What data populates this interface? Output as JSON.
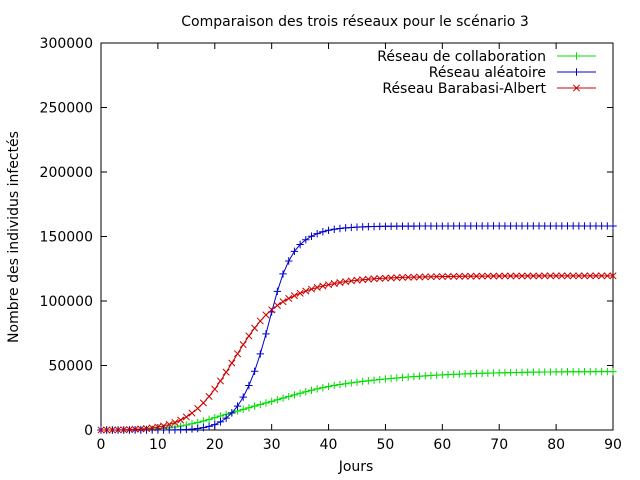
{
  "chart_data": {
    "type": "line",
    "title": "Comparaison des trois réseaux pour le scénario 3",
    "xlabel": "Jours",
    "ylabel": "Nombre des individus infectés",
    "xlim": [
      0,
      90
    ],
    "ylim": [
      0,
      300000
    ],
    "xticks": [
      "0",
      "10",
      "20",
      "30",
      "40",
      "50",
      "60",
      "70",
      "80",
      "90"
    ],
    "yticks": [
      "0",
      "50000",
      "100000",
      "150000",
      "200000",
      "250000",
      "300000"
    ],
    "grid": false,
    "legend_position": "top-right",
    "series": [
      {
        "name": "Réseau de collaboration",
        "color": "#00dd00",
        "marker": "plus",
        "x": [
          0,
          1,
          2,
          3,
          4,
          5,
          6,
          7,
          8,
          9,
          10,
          11,
          12,
          13,
          14,
          15,
          16,
          17,
          18,
          19,
          20,
          21,
          22,
          23,
          24,
          25,
          26,
          27,
          28,
          29,
          30,
          31,
          32,
          33,
          34,
          35,
          36,
          37,
          38,
          39,
          40,
          41,
          42,
          43,
          44,
          45,
          46,
          47,
          48,
          49,
          50,
          51,
          52,
          53,
          54,
          55,
          56,
          57,
          58,
          59,
          60,
          61,
          62,
          63,
          64,
          65,
          66,
          67,
          68,
          69,
          70,
          71,
          72,
          73,
          74,
          75,
          76,
          77,
          78,
          79,
          80,
          81,
          82,
          83,
          84,
          85,
          86,
          87,
          88,
          89,
          90
        ],
        "values": [
          0,
          0,
          0,
          0,
          50,
          150,
          250,
          350,
          500,
          700,
          950,
          1300,
          1750,
          2350,
          3050,
          3850,
          4800,
          5850,
          7000,
          8250,
          9550,
          10850,
          12150,
          13450,
          14750,
          16000,
          17250,
          18500,
          19750,
          20950,
          22200,
          23450,
          24700,
          25950,
          27200,
          28450,
          29650,
          30800,
          31850,
          32850,
          33750,
          34550,
          35250,
          35900,
          36500,
          37100,
          37650,
          38150,
          38650,
          39100,
          39550,
          39950,
          40350,
          40700,
          41050,
          41400,
          41700,
          42000,
          42250,
          42500,
          42700,
          42950,
          43150,
          43350,
          43500,
          43650,
          43800,
          43950,
          44100,
          44200,
          44300,
          44400,
          44500,
          44600,
          44700,
          44800,
          44850,
          44900,
          44950,
          45000,
          45050,
          45100,
          45150,
          45150,
          45200,
          45200,
          45200,
          45250,
          45250,
          45250,
          45250
        ]
      },
      {
        "name": "Réseau aléatoire",
        "color": "#0000cc",
        "marker": "plus",
        "x": [
          0,
          1,
          2,
          3,
          4,
          5,
          6,
          7,
          8,
          9,
          10,
          11,
          12,
          13,
          14,
          15,
          16,
          17,
          18,
          19,
          20,
          21,
          22,
          23,
          24,
          25,
          26,
          27,
          28,
          29,
          30,
          31,
          32,
          33,
          34,
          35,
          36,
          37,
          38,
          39,
          40,
          41,
          42,
          43,
          44,
          45,
          46,
          47,
          48,
          49,
          50,
          51,
          52,
          53,
          54,
          55,
          56,
          57,
          58,
          59,
          60,
          61,
          62,
          63,
          64,
          65,
          66,
          67,
          68,
          69,
          70,
          71,
          72,
          73,
          74,
          75,
          76,
          77,
          78,
          79,
          80,
          81,
          82,
          83,
          84,
          85,
          86,
          87,
          88,
          89,
          90
        ],
        "values": [
          0,
          0,
          0,
          0,
          0,
          0,
          0,
          0,
          0,
          0,
          0,
          0,
          50,
          100,
          200,
          400,
          700,
          1150,
          1800,
          2800,
          4200,
          6300,
          9200,
          13200,
          18500,
          25500,
          34500,
          45500,
          59000,
          74500,
          91500,
          107500,
          121000,
          131000,
          138500,
          143800,
          147500,
          150200,
          152200,
          153700,
          154800,
          155600,
          156200,
          156700,
          157000,
          157300,
          157500,
          157650,
          157750,
          157850,
          157900,
          157950,
          158000,
          158000,
          158050,
          158050,
          158100,
          158100,
          158100,
          158100,
          158100,
          158100,
          158150,
          158150,
          158150,
          158150,
          158150,
          158150,
          158150,
          158150,
          158150,
          158150,
          158150,
          158150,
          158150,
          158150,
          158150,
          158150,
          158150,
          158150,
          158150,
          158150,
          158150,
          158150,
          158150,
          158150,
          158150,
          158150,
          158150,
          158150,
          158150
        ]
      },
      {
        "name": "Réseau Barabasi-Albert",
        "color": "#cc0000",
        "marker": "x",
        "x": [
          0,
          1,
          2,
          3,
          4,
          5,
          6,
          7,
          8,
          9,
          10,
          11,
          12,
          13,
          14,
          15,
          16,
          17,
          18,
          19,
          20,
          21,
          22,
          23,
          24,
          25,
          26,
          27,
          28,
          29,
          30,
          31,
          32,
          33,
          34,
          35,
          36,
          37,
          38,
          39,
          40,
          41,
          42,
          43,
          44,
          45,
          46,
          47,
          48,
          49,
          50,
          51,
          52,
          53,
          54,
          55,
          56,
          57,
          58,
          59,
          60,
          61,
          62,
          63,
          64,
          65,
          66,
          67,
          68,
          69,
          70,
          71,
          72,
          73,
          74,
          75,
          76,
          77,
          78,
          79,
          80,
          81,
          82,
          83,
          84,
          85,
          86,
          87,
          88,
          89,
          90
        ],
        "values": [
          0,
          0,
          0,
          100,
          200,
          350,
          550,
          800,
          1150,
          1650,
          2300,
          3150,
          4300,
          5800,
          7700,
          10100,
          13100,
          16700,
          21000,
          26000,
          31700,
          38000,
          44800,
          51900,
          59100,
          66200,
          72900,
          79000,
          84500,
          89200,
          93200,
          96600,
          99500,
          102000,
          104100,
          106000,
          107700,
          109200,
          110500,
          111600,
          112600,
          113500,
          114300,
          115000,
          115600,
          116100,
          116500,
          116900,
          117200,
          117500,
          117700,
          117900,
          118100,
          118300,
          118400,
          118500,
          118600,
          118700,
          118800,
          118900,
          118950,
          119000,
          119050,
          119100,
          119150,
          119200,
          119250,
          119300,
          119300,
          119350,
          119350,
          119400,
          119400,
          119400,
          119450,
          119450,
          119450,
          119450,
          119500,
          119500,
          119500,
          119500,
          119500,
          119500,
          119500,
          119500,
          119500,
          119500,
          119500,
          119500,
          119500
        ]
      }
    ]
  }
}
